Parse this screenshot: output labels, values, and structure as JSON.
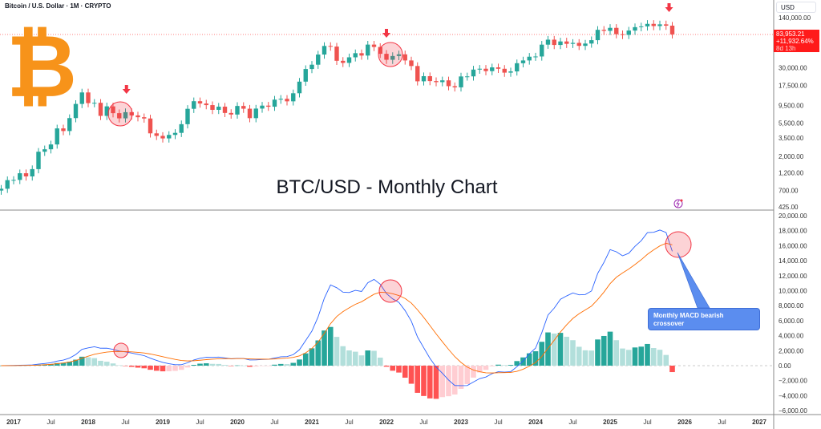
{
  "header": {
    "symbol": "Bitcoin / U.S. Dollar · 1M · CRYPTO",
    "currency": "USD"
  },
  "title": "BTC/USD - Monthly Chart",
  "logo_text": "₿",
  "price_tag": {
    "price": "83,953.21",
    "change": "+11,932.64%",
    "countdown": "8d 13h"
  },
  "callout": "Monthly MACD bearish crossover",
  "colors": {
    "up": "#26a69a",
    "down": "#ef5350",
    "macd": "#2962ff",
    "signal": "#ff6d00",
    "hist_up_strong": "#26a69a",
    "hist_up_weak": "#b2dfdb",
    "hist_dn_strong": "#ff5252",
    "hist_dn_weak": "#ffcdd2",
    "accent": "#f7931a"
  },
  "chart_data": {
    "type": "candlestick",
    "start": "2016-11",
    "interval": "1M",
    "price_axis_ticks": [
      "140,000.00",
      "30,000.00",
      "17,500.00",
      "9,500.00",
      "5,500.00",
      "3,500.00",
      "2,000.00",
      "1,200.00",
      "700.00",
      "425.00"
    ],
    "price_tick_values": [
      140000,
      30000,
      17500,
      9500,
      5500,
      3500,
      2000,
      1200,
      700,
      425
    ],
    "macd_axis_ticks": [
      "20,000.00",
      "18,000.00",
      "16,000.00",
      "14,000.00",
      "12,000.00",
      "10,000.00",
      "8,000.00",
      "6,000.00",
      "4,000.00",
      "2,000.00",
      "0.00",
      "−2,000.00",
      "−4,000.00",
      "−6,000.00"
    ],
    "time_ticks": [
      {
        "label": "2017",
        "m": 0,
        "bold": true
      },
      {
        "label": "Jul",
        "m": 6
      },
      {
        "label": "2018",
        "m": 12,
        "bold": true
      },
      {
        "label": "Jul",
        "m": 18
      },
      {
        "label": "2019",
        "m": 24,
        "bold": true
      },
      {
        "label": "Jul",
        "m": 30
      },
      {
        "label": "2020",
        "m": 36,
        "bold": true
      },
      {
        "label": "Jul",
        "m": 42
      },
      {
        "label": "2021",
        "m": 48,
        "bold": true
      },
      {
        "label": "Jul",
        "m": 54
      },
      {
        "label": "2022",
        "m": 60,
        "bold": true
      },
      {
        "label": "Jul",
        "m": 66
      },
      {
        "label": "2023",
        "m": 72,
        "bold": true
      },
      {
        "label": "Jul",
        "m": 78
      },
      {
        "label": "2024",
        "m": 84,
        "bold": true
      },
      {
        "label": "Jul",
        "m": 90
      },
      {
        "label": "2025",
        "m": 96,
        "bold": true
      },
      {
        "label": "Jul",
        "m": 102
      },
      {
        "label": "2026",
        "m": 108,
        "bold": true
      },
      {
        "label": "Jul",
        "m": 114
      },
      {
        "label": "2027",
        "m": 120,
        "bold": true
      }
    ],
    "first_open": 700,
    "closes": [
      740,
      963,
      970,
      1190,
      1080,
      1350,
      2300,
      2480,
      2875,
      4700,
      4340,
      6450,
      9950,
      14150,
      10200,
      10300,
      6900,
      9240,
      7500,
      6400,
      7730,
      7000,
      6625,
      6370,
      4040,
      3740,
      3460,
      3850,
      4100,
      5350,
      8570,
      10820,
      10080,
      9600,
      8300,
      9150,
      7550,
      7190,
      9350,
      8600,
      6440,
      8630,
      9450,
      9140,
      11350,
      11650,
      10780,
      13800,
      19700,
      28990,
      33100,
      45200,
      58800,
      57700,
      37300,
      35000,
      41500,
      47100,
      43800,
      61300,
      57000,
      46200,
      38500,
      43200,
      45500,
      37700,
      31800,
      19900,
      23300,
      20050,
      19400,
      20500,
      17150,
      16550,
      23100,
      23150,
      28500,
      29250,
      27200,
      30500,
      29200,
      25950,
      26960,
      34650,
      37700,
      42280,
      42580,
      61200,
      71300,
      60600,
      67500,
      62700,
      64600,
      59000,
      63300,
      70200,
      96400,
      93400,
      102400,
      84300,
      82500,
      94200,
      104600,
      107100,
      115700,
      108200,
      114000,
      109500,
      83953
    ],
    "annotations": [
      {
        "type": "arrow-down",
        "m": 17
      },
      {
        "type": "arrow-down",
        "m": 60
      },
      {
        "type": "arrow-down",
        "m": 106
      }
    ],
    "macd": {
      "fast": 12,
      "slow": 26,
      "signal": 9
    }
  }
}
